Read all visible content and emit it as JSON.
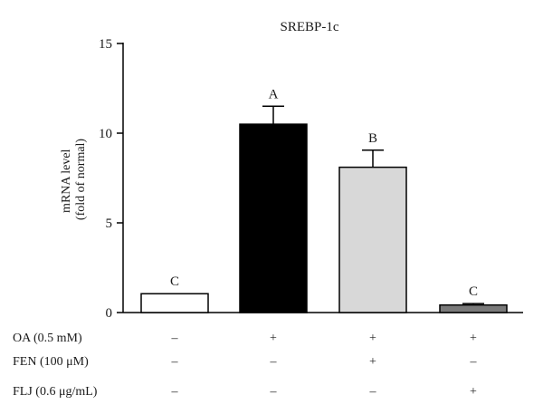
{
  "chart_data": {
    "type": "bar",
    "title": "SREBP-1c",
    "ylabel_lines": [
      "mRNA level",
      "(fold of normal)"
    ],
    "xlabel": "",
    "ylim": [
      0,
      15
    ],
    "yticks": [
      "0",
      "5",
      "10",
      "15"
    ],
    "grid": false,
    "legend": "none",
    "bars": [
      {
        "value": 1.05,
        "error": 0.0,
        "label": "C",
        "color": "#ffffff"
      },
      {
        "value": 10.5,
        "error": 1.0,
        "label": "A",
        "color": "#000000"
      },
      {
        "value": 8.1,
        "error": 0.95,
        "label": "B",
        "color": "#d8d8d8"
      },
      {
        "value": 0.42,
        "error": 0.08,
        "label": "C",
        "color": "#7a7a7a"
      }
    ],
    "treatment_rows": [
      {
        "label": "OA (0.5 mM)",
        "signs": [
          "–",
          "+",
          "+",
          "+"
        ]
      },
      {
        "label": "FEN (100 μM)",
        "signs": [
          "–",
          "–",
          "+",
          "–"
        ]
      },
      {
        "label": "FLJ (0.6 μg/mL)",
        "signs": [
          "–",
          "–",
          "–",
          "+"
        ]
      }
    ]
  }
}
